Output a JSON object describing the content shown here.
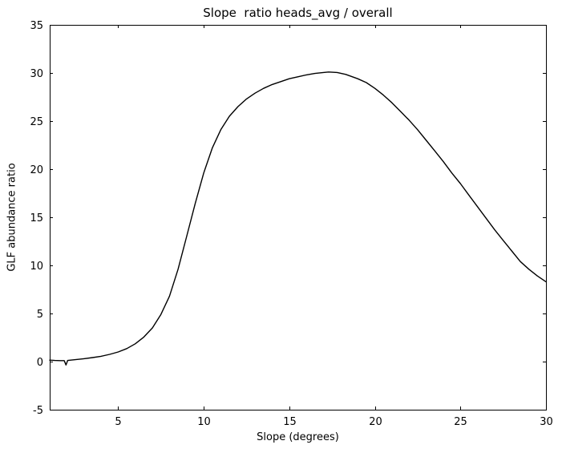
{
  "chart_data": {
    "type": "line",
    "title": "Slope  ratio heads_avg / overall",
    "xlabel": "Slope (degrees)",
    "ylabel": "GLF abundance ratio",
    "xlim": [
      1,
      30
    ],
    "ylim": [
      -5,
      35
    ],
    "xticks": [
      5,
      10,
      15,
      20,
      25,
      30
    ],
    "yticks": [
      -5,
      0,
      5,
      10,
      15,
      20,
      25,
      30,
      35
    ],
    "grid": false,
    "legend": "none",
    "line_color": "#000000",
    "axis_color": "#000000",
    "background_color": "#ffffff",
    "points": [
      [
        1.0,
        0.15
      ],
      [
        1.3,
        0.12
      ],
      [
        1.6,
        0.1
      ],
      [
        1.85,
        0.1
      ],
      [
        1.95,
        -0.35
      ],
      [
        2.05,
        0.12
      ],
      [
        2.5,
        0.2
      ],
      [
        3.0,
        0.3
      ],
      [
        3.5,
        0.42
      ],
      [
        4.0,
        0.55
      ],
      [
        4.5,
        0.75
      ],
      [
        5.0,
        1.0
      ],
      [
        5.5,
        1.35
      ],
      [
        6.0,
        1.85
      ],
      [
        6.5,
        2.55
      ],
      [
        7.0,
        3.5
      ],
      [
        7.5,
        4.9
      ],
      [
        8.0,
        6.8
      ],
      [
        8.5,
        9.6
      ],
      [
        9.0,
        13.0
      ],
      [
        9.5,
        16.4
      ],
      [
        10.0,
        19.6
      ],
      [
        10.5,
        22.2
      ],
      [
        11.0,
        24.1
      ],
      [
        11.5,
        25.5
      ],
      [
        12.0,
        26.5
      ],
      [
        12.5,
        27.3
      ],
      [
        13.0,
        27.9
      ],
      [
        13.5,
        28.4
      ],
      [
        14.0,
        28.8
      ],
      [
        14.5,
        29.1
      ],
      [
        15.0,
        29.4
      ],
      [
        15.5,
        29.6
      ],
      [
        16.0,
        29.8
      ],
      [
        16.5,
        29.95
      ],
      [
        17.0,
        30.05
      ],
      [
        17.3,
        30.1
      ],
      [
        17.8,
        30.05
      ],
      [
        18.3,
        29.85
      ],
      [
        19.0,
        29.4
      ],
      [
        19.5,
        29.0
      ],
      [
        20.0,
        28.4
      ],
      [
        20.5,
        27.7
      ],
      [
        21.0,
        26.9
      ],
      [
        21.5,
        26.0
      ],
      [
        22.0,
        25.1
      ],
      [
        22.5,
        24.1
      ],
      [
        23.0,
        23.0
      ],
      [
        23.5,
        21.9
      ],
      [
        24.0,
        20.8
      ],
      [
        24.5,
        19.6
      ],
      [
        25.0,
        18.5
      ],
      [
        25.5,
        17.3
      ],
      [
        26.0,
        16.1
      ],
      [
        26.5,
        14.9
      ],
      [
        27.0,
        13.7
      ],
      [
        27.5,
        12.6
      ],
      [
        28.0,
        11.5
      ],
      [
        28.5,
        10.4
      ],
      [
        29.0,
        9.6
      ],
      [
        29.5,
        8.9
      ],
      [
        30.0,
        8.3
      ]
    ]
  }
}
